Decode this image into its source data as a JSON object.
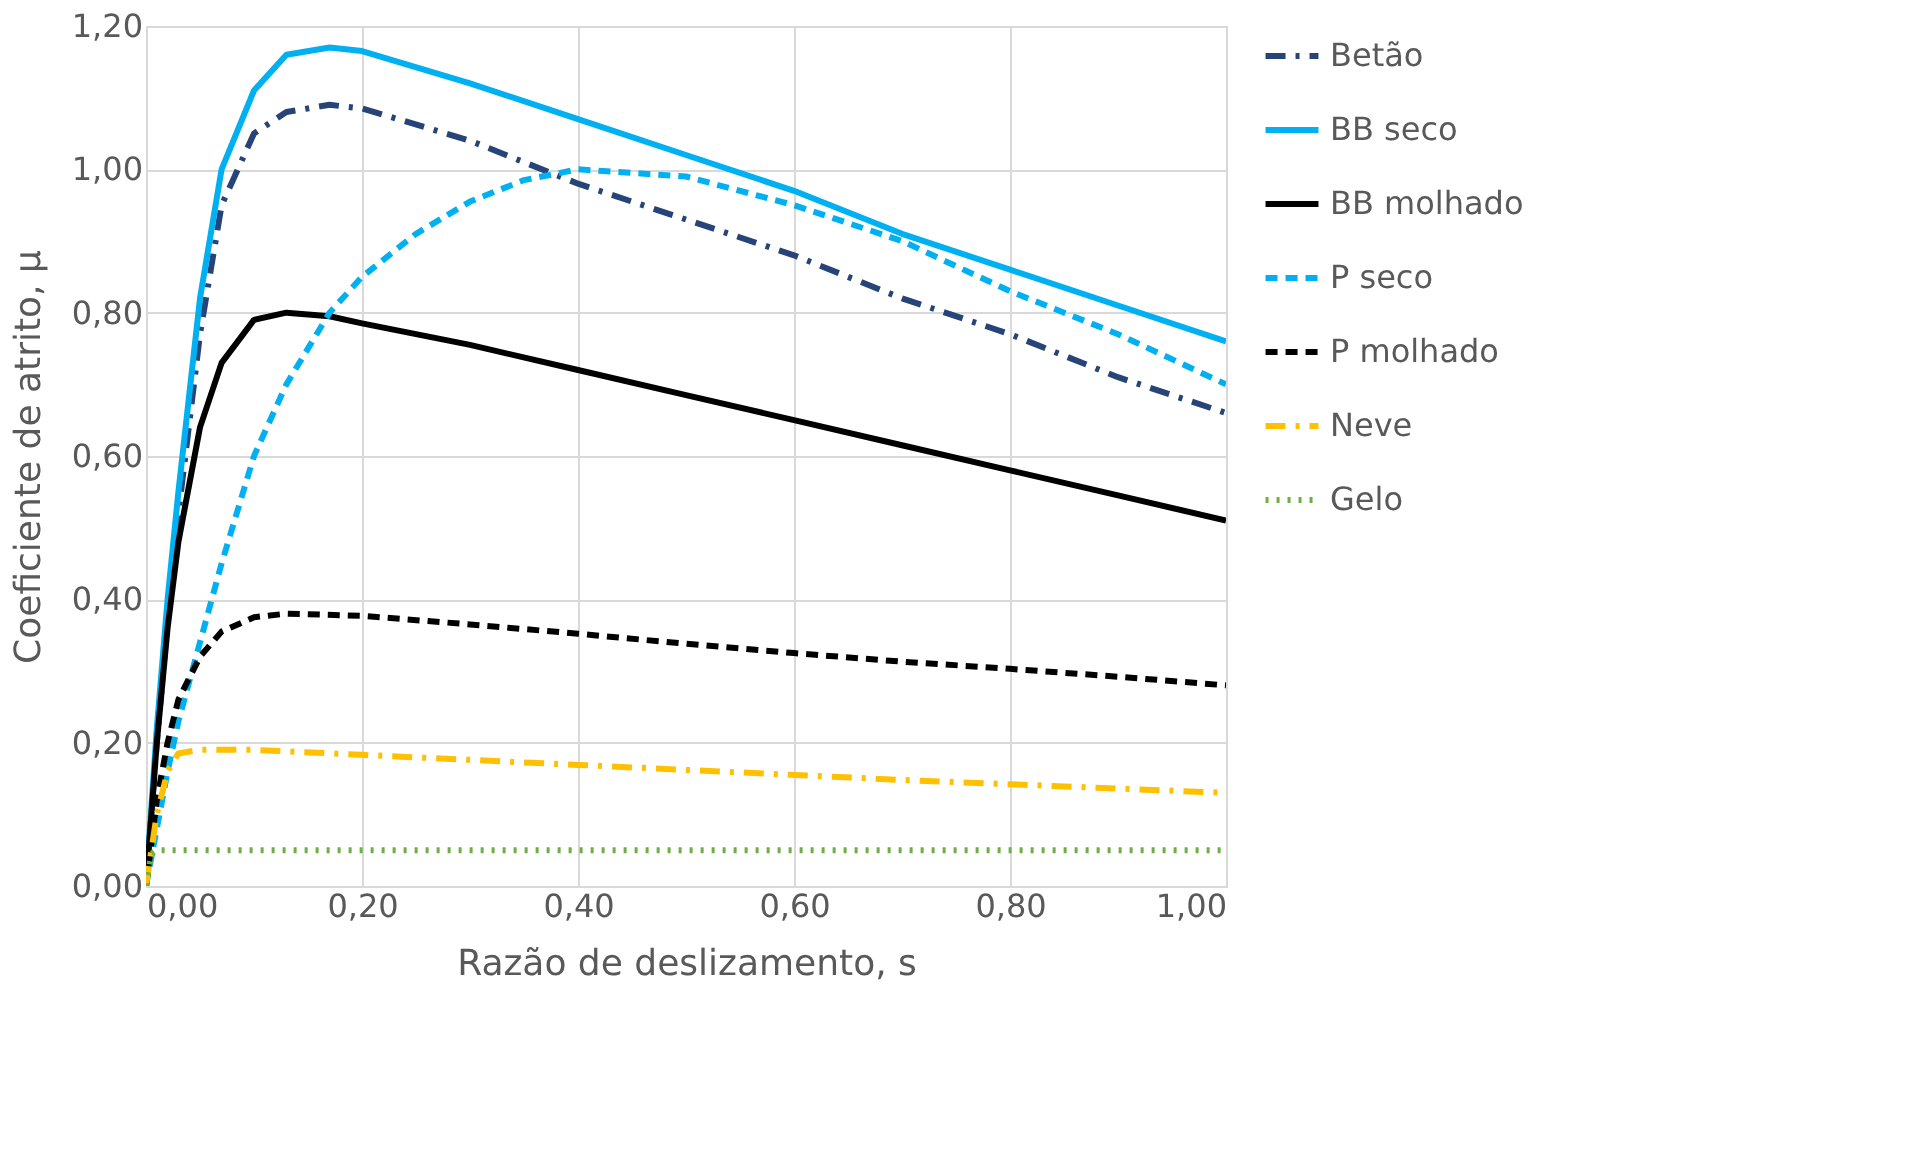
{
  "chart_data": {
    "type": "line",
    "xlabel": "Razão de deslizamento, s",
    "ylabel": "Coeficiente de atrito, μ",
    "xlim": [
      0,
      1
    ],
    "ylim": [
      0,
      1.2
    ],
    "xticks": [
      {
        "value": 0,
        "label": "0,00"
      },
      {
        "value": 0.2,
        "label": "0,20"
      },
      {
        "value": 0.4,
        "label": "0,40"
      },
      {
        "value": 0.6,
        "label": "0,60"
      },
      {
        "value": 0.8,
        "label": "0,80"
      },
      {
        "value": 1,
        "label": "1,00"
      }
    ],
    "yticks": [
      {
        "value": 0,
        "label": "0,00"
      },
      {
        "value": 0.2,
        "label": "0,20"
      },
      {
        "value": 0.4,
        "label": "0,40"
      },
      {
        "value": 0.6,
        "label": "0,60"
      },
      {
        "value": 0.8,
        "label": "0,80"
      },
      {
        "value": 1,
        "label": "1,00"
      },
      {
        "value": 1.2,
        "label": "1,20"
      }
    ],
    "grid": true,
    "legend": "right",
    "series": [
      {
        "name": "Betão",
        "color": "#264478",
        "line_style": "dashdot",
        "x": [
          0,
          0.01,
          0.02,
          0.03,
          0.05,
          0.07,
          0.1,
          0.13,
          0.17,
          0.2,
          0.3,
          0.4,
          0.5,
          0.6,
          0.7,
          0.8,
          0.9,
          1.0
        ],
        "values": [
          0,
          0.2,
          0.37,
          0.52,
          0.77,
          0.95,
          1.05,
          1.08,
          1.09,
          1.085,
          1.04,
          0.98,
          0.93,
          0.88,
          0.82,
          0.77,
          0.71,
          0.66
        ]
      },
      {
        "name": "BB seco",
        "color": "#00b0f0",
        "line_style": "solid",
        "x": [
          0,
          0.01,
          0.02,
          0.03,
          0.05,
          0.07,
          0.1,
          0.13,
          0.17,
          0.2,
          0.3,
          0.4,
          0.5,
          0.6,
          0.7,
          0.8,
          0.9,
          1.0
        ],
        "values": [
          0,
          0.22,
          0.4,
          0.55,
          0.82,
          1.0,
          1.11,
          1.16,
          1.17,
          1.165,
          1.12,
          1.07,
          1.02,
          0.97,
          0.91,
          0.86,
          0.81,
          0.76
        ]
      },
      {
        "name": "BB molhado",
        "color": "#000000",
        "line_style": "solid",
        "x": [
          0,
          0.01,
          0.02,
          0.03,
          0.05,
          0.07,
          0.1,
          0.13,
          0.17,
          0.2,
          0.3,
          0.4,
          0.5,
          0.6,
          0.7,
          0.8,
          0.9,
          1.0
        ],
        "values": [
          0,
          0.2,
          0.36,
          0.48,
          0.64,
          0.73,
          0.79,
          0.8,
          0.795,
          0.785,
          0.755,
          0.72,
          0.685,
          0.65,
          0.615,
          0.58,
          0.545,
          0.51
        ]
      },
      {
        "name": "P seco",
        "color": "#00b0f0",
        "line_style": "dashed",
        "x": [
          0,
          0.01,
          0.02,
          0.03,
          0.05,
          0.07,
          0.1,
          0.13,
          0.17,
          0.2,
          0.25,
          0.3,
          0.35,
          0.4,
          0.5,
          0.6,
          0.7,
          0.8,
          0.9,
          1.0
        ],
        "values": [
          0,
          0.08,
          0.16,
          0.23,
          0.34,
          0.45,
          0.6,
          0.7,
          0.8,
          0.85,
          0.91,
          0.955,
          0.985,
          1.0,
          0.99,
          0.95,
          0.9,
          0.83,
          0.77,
          0.7
        ]
      },
      {
        "name": "P molhado",
        "color": "#000000",
        "line_style": "dashed",
        "x": [
          0,
          0.01,
          0.02,
          0.03,
          0.05,
          0.07,
          0.1,
          0.13,
          0.2,
          0.3,
          0.4,
          0.5,
          0.6,
          0.7,
          0.8,
          0.9,
          1.0
        ],
        "values": [
          0,
          0.12,
          0.2,
          0.26,
          0.32,
          0.355,
          0.375,
          0.38,
          0.377,
          0.365,
          0.352,
          0.338,
          0.325,
          0.313,
          0.303,
          0.292,
          0.28
        ]
      },
      {
        "name": "Neve",
        "color": "#ffc000",
        "line_style": "dashdot",
        "x": [
          0,
          0.01,
          0.02,
          0.03,
          0.05,
          0.1,
          0.2,
          0.3,
          0.4,
          0.5,
          0.6,
          0.7,
          0.8,
          0.9,
          1.0
        ],
        "values": [
          0,
          0.1,
          0.16,
          0.185,
          0.19,
          0.19,
          0.183,
          0.176,
          0.169,
          0.162,
          0.155,
          0.148,
          0.142,
          0.136,
          0.13
        ]
      },
      {
        "name": "Gelo",
        "color": "#70ad47",
        "line_style": "dotted",
        "x": [
          0,
          0.005,
          0.01,
          0.5,
          1.0
        ],
        "values": [
          0,
          0.045,
          0.05,
          0.05,
          0.05
        ]
      }
    ]
  }
}
